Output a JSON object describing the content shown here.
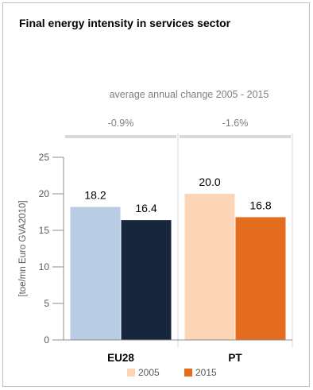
{
  "title": "Final energy intensity in services sector",
  "annotation_title": "average annual change 2005 - 2015",
  "chart_data": {
    "type": "bar",
    "title": "Final energy intensity in services sector",
    "categories": [
      "EU28",
      "PT"
    ],
    "series": [
      {
        "name": "2005",
        "values": [
          18.2,
          20.0
        ]
      },
      {
        "name": "2015",
        "values": [
          16.4,
          16.8
        ]
      }
    ],
    "data_labels": [
      [
        "18.2",
        "20.0"
      ],
      [
        "16.4",
        "16.8"
      ]
    ],
    "changes": [
      "-0.9%",
      "-1.6%"
    ],
    "ylabel": "[toe/mn Euro GVA2010]",
    "xlabel": "",
    "ylim": [
      0,
      25
    ],
    "yticks": [
      0,
      5,
      10,
      15,
      20,
      25
    ],
    "grid": false,
    "legend_position": "bottom",
    "colors": {
      "EU28": [
        "#b8cce4",
        "#17253d"
      ],
      "PT": [
        "#fbd5b5",
        "#e46c1f"
      ],
      "legend": [
        "#fbd5b5",
        "#e46c1f"
      ],
      "axis": "#8c8c8c",
      "change_bar": "#d9d9d9"
    }
  }
}
